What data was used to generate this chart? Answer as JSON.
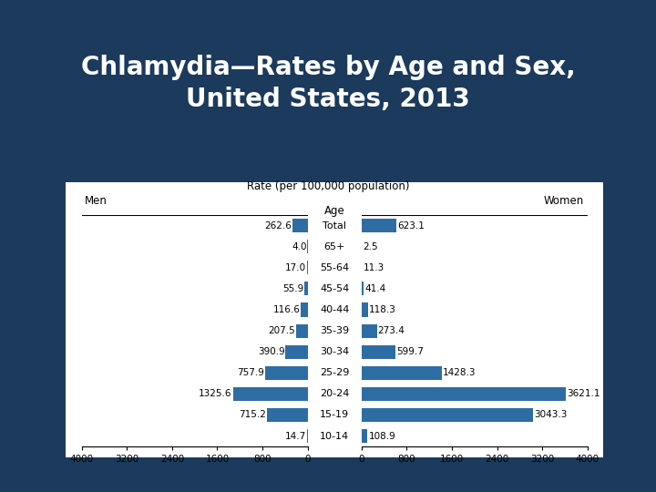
{
  "title": "Chlamydia—Rates by Age and Sex,\nUnited States, 2013",
  "age_groups": [
    "10-14",
    "15-19",
    "20-24",
    "25-29",
    "30-34",
    "35-39",
    "40-44",
    "45-54",
    "55-64",
    "65+",
    "Total"
  ],
  "men_values": [
    14.7,
    715.2,
    1325.6,
    757.9,
    390.9,
    207.5,
    116.6,
    55.9,
    17.0,
    4.0,
    262.6
  ],
  "women_values": [
    108.9,
    3043.3,
    3621.1,
    1428.3,
    599.7,
    273.4,
    118.3,
    41.4,
    11.3,
    2.5,
    623.1
  ],
  "bar_color": "#2e6da4",
  "background_outer": "#1b3a5c",
  "background_inner": "#ffffff",
  "axis_max": 4000,
  "x_ticks": [
    0,
    800,
    1600,
    2400,
    3200,
    4000
  ],
  "title_color": "#ffffff",
  "title_fontsize": 20,
  "label_fontsize": 8.5
}
